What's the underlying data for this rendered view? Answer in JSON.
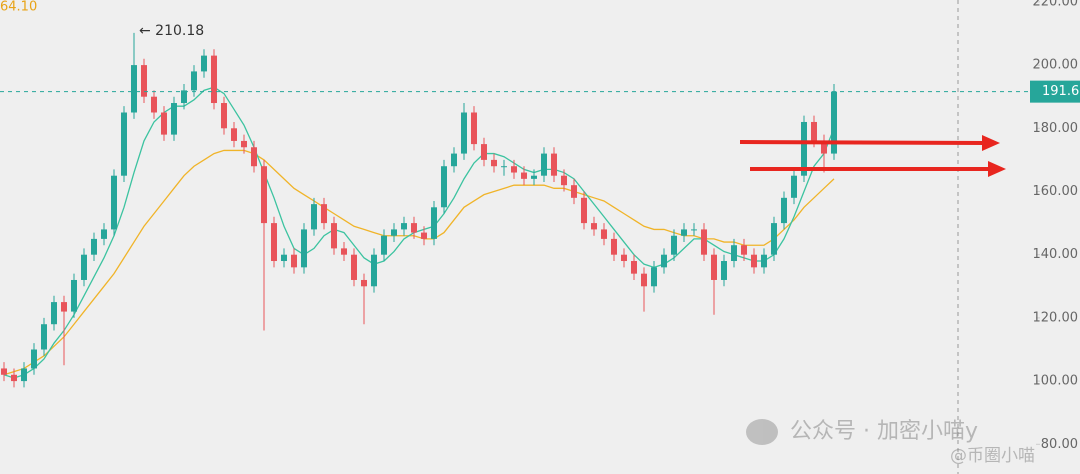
{
  "chart_data": {
    "type": "candlestick",
    "top_left_label": "64.10",
    "annotation": "← 210.18",
    "up_color": "#26a69a",
    "down_color": "#e8545a",
    "ylim": [
      70.6,
      220.6
    ],
    "yticks": [
      {
        "value": 220,
        "label": "220.00"
      },
      {
        "value": 200,
        "label": "200.00"
      },
      {
        "value": 180,
        "label": "180.00"
      },
      {
        "value": 160,
        "label": "160.00"
      },
      {
        "value": 140,
        "label": "140.00"
      },
      {
        "value": 120,
        "label": "120.00"
      },
      {
        "value": 100,
        "label": "100.00"
      },
      {
        "value": 80,
        "label": "80.00"
      }
    ],
    "open": [
      104,
      102,
      100,
      104,
      110,
      118,
      125,
      122,
      132,
      140,
      145,
      148,
      165,
      185,
      200,
      190,
      185,
      178,
      188,
      192,
      198,
      203,
      188,
      180,
      176,
      174,
      168,
      150,
      138,
      140,
      136,
      148,
      156,
      150,
      142,
      140,
      132,
      130,
      140,
      146,
      148,
      150,
      147,
      145,
      155,
      168,
      172,
      185,
      175,
      170,
      168,
      168,
      166,
      164,
      165,
      172,
      165,
      162,
      158,
      150,
      148,
      145,
      140,
      138,
      134,
      130,
      136,
      140,
      146,
      148,
      148,
      140,
      132,
      138,
      143,
      140,
      136,
      140,
      150,
      158,
      165,
      182,
      176,
      172
    ],
    "high": [
      106,
      104,
      106,
      112,
      120,
      127,
      127,
      134,
      142,
      147,
      150,
      167,
      187,
      210.18,
      202,
      192,
      187,
      190,
      194,
      200,
      205,
      205,
      190,
      182,
      178,
      176,
      170,
      152,
      142,
      142,
      150,
      158,
      158,
      152,
      144,
      142,
      134,
      142,
      148,
      150,
      152,
      152,
      149,
      157,
      170,
      174,
      188,
      187,
      177,
      172,
      170,
      170,
      168,
      167,
      174,
      174,
      167,
      164,
      160,
      152,
      150,
      147,
      142,
      140,
      136,
      138,
      142,
      148,
      150,
      150,
      150,
      142,
      140,
      145,
      145,
      142,
      142,
      152,
      160,
      167,
      184,
      184,
      178,
      194
    ],
    "low": [
      100,
      98,
      98,
      102,
      108,
      116,
      105,
      120,
      130,
      138,
      143,
      146,
      163,
      183,
      188,
      183,
      176,
      176,
      186,
      190,
      196,
      186,
      178,
      174,
      172,
      166,
      116,
      136,
      136,
      134,
      134,
      146,
      148,
      140,
      138,
      130,
      118,
      128,
      138,
      144,
      146,
      145,
      143,
      143,
      153,
      166,
      170,
      173,
      168,
      166,
      165,
      164,
      162,
      162,
      163,
      163,
      160,
      156,
      148,
      146,
      143,
      138,
      136,
      132,
      122,
      128,
      134,
      138,
      144,
      146,
      138,
      121,
      130,
      136,
      138,
      134,
      134,
      138,
      148,
      156,
      163,
      174,
      166,
      170
    ],
    "close": [
      102,
      100,
      104,
      110,
      118,
      125,
      122,
      132,
      140,
      145,
      148,
      165,
      185,
      200,
      190,
      185,
      178,
      188,
      192,
      198,
      203,
      188,
      180,
      176,
      174,
      168,
      150,
      138,
      140,
      136,
      148,
      156,
      150,
      142,
      140,
      132,
      130,
      140,
      146,
      148,
      150,
      147,
      145,
      155,
      168,
      172,
      185,
      175,
      170,
      168,
      168,
      166,
      164,
      165,
      172,
      165,
      162,
      158,
      150,
      148,
      145,
      140,
      138,
      134,
      130,
      136,
      140,
      146,
      148,
      148,
      140,
      132,
      138,
      143,
      140,
      136,
      140,
      150,
      158,
      165,
      182,
      176,
      172,
      191.6
    ],
    "ma_short": {
      "color": "#3cc3a0",
      "values": [
        102,
        101,
        102,
        104,
        107,
        112,
        116,
        121,
        127,
        133,
        139,
        146,
        155,
        166,
        176,
        182,
        185,
        187,
        187,
        189,
        192,
        193,
        191,
        186,
        181,
        174,
        166,
        158,
        149,
        142,
        140,
        142,
        146,
        148,
        147,
        143,
        139,
        137,
        138,
        141,
        145,
        147,
        148,
        149,
        153,
        158,
        164,
        169,
        172,
        172,
        171,
        169,
        167,
        166,
        167,
        167,
        166,
        164,
        160,
        156,
        152,
        148,
        144,
        140,
        137,
        136,
        137,
        139,
        142,
        145,
        145,
        143,
        141,
        140,
        139,
        138,
        138,
        140,
        145,
        152,
        160,
        168,
        172,
        180
      ]
    },
    "ma_long": {
      "color": "#f0b429",
      "values": [
        102,
        103,
        104,
        106,
        108,
        111,
        114,
        118,
        122,
        126,
        130,
        134,
        139,
        144,
        149,
        153,
        157,
        161,
        165,
        168,
        170,
        172,
        173,
        173,
        173,
        172,
        170,
        167,
        164,
        161,
        159,
        157,
        155,
        153,
        151,
        149,
        148,
        147,
        146,
        146,
        146,
        146,
        145,
        145,
        147,
        151,
        155,
        157,
        159,
        160,
        161,
        162,
        162,
        162,
        162,
        161,
        161,
        160,
        159,
        158,
        157,
        155,
        153,
        151,
        149,
        148,
        148,
        147,
        146,
        146,
        145,
        145,
        144,
        144,
        143,
        143,
        143,
        145,
        148,
        151,
        155,
        158,
        161,
        164
      ]
    }
  },
  "watermark": {
    "account": "公众号 · 加密小喵y",
    "handle": "@币圈小喵"
  }
}
